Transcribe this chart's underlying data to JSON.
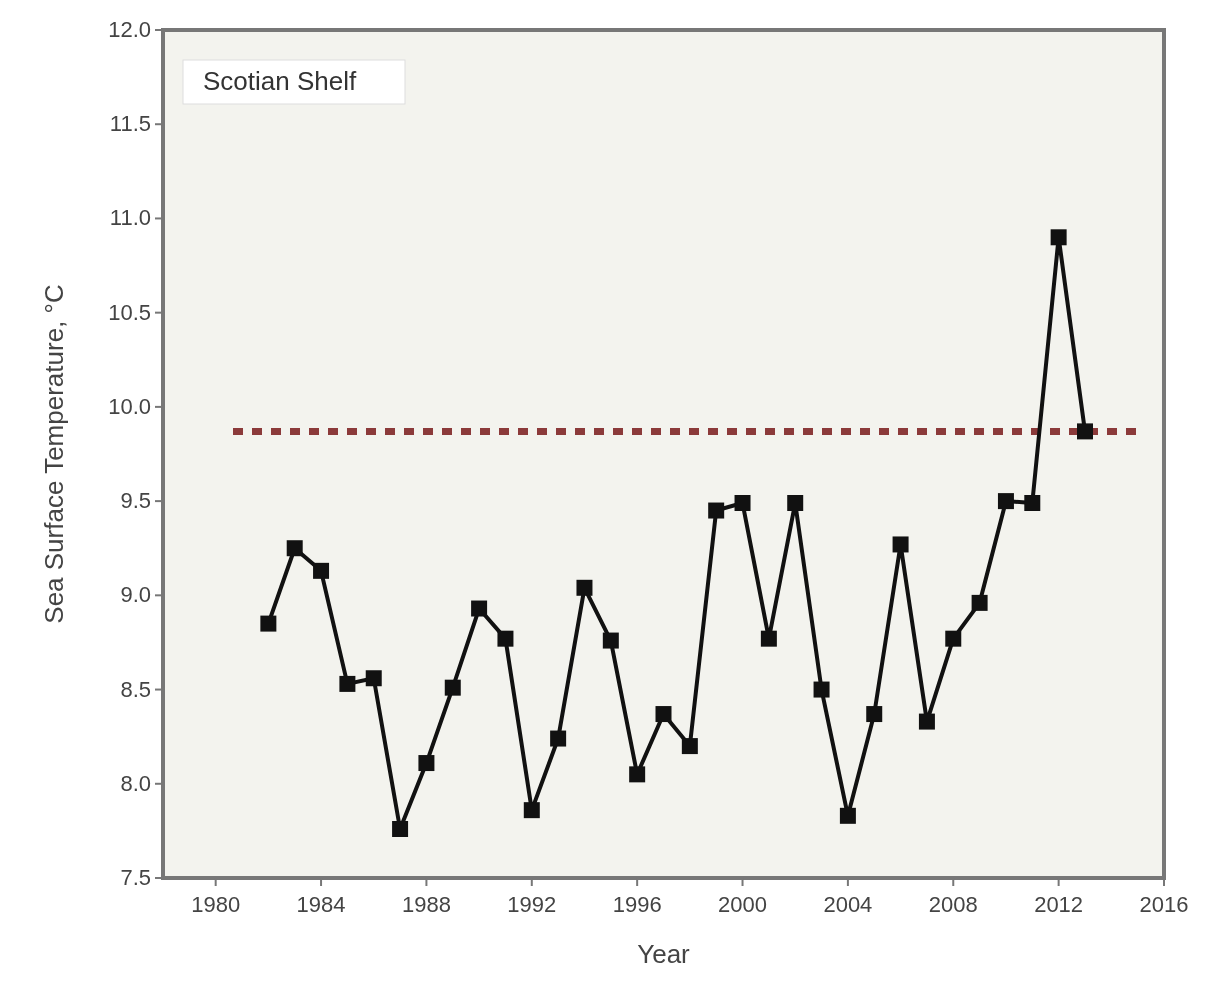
{
  "chart_data": {
    "type": "line",
    "xlabel": "Year",
    "ylabel": "Sea Surface Temperature, °C",
    "annotations": [
      "Scotian Shelf"
    ],
    "x": [
      1982,
      1983,
      1984,
      1985,
      1986,
      1987,
      1988,
      1989,
      1990,
      1991,
      1992,
      1993,
      1994,
      1995,
      1996,
      1997,
      1998,
      1999,
      2000,
      2001,
      2002,
      2003,
      2004,
      2005,
      2006,
      2007,
      2008,
      2009,
      2010,
      2011,
      2012,
      2013
    ],
    "series": [
      {
        "color": "#111111",
        "values": [
          8.85,
          9.25,
          9.13,
          8.53,
          8.56,
          7.76,
          8.11,
          8.51,
          8.93,
          8.77,
          7.86,
          8.24,
          9.04,
          8.76,
          8.05,
          8.37,
          8.2,
          9.45,
          9.49,
          8.77,
          9.49,
          8.5,
          7.83,
          8.37,
          9.27,
          8.33,
          8.77,
          8.96,
          9.5,
          9.49,
          10.9,
          9.87
        ]
      }
    ],
    "xlim": [
      1978,
      2016
    ],
    "xticks": [
      1980,
      1984,
      1988,
      1992,
      1996,
      2000,
      2004,
      2008,
      2012,
      2016
    ],
    "ylim": [
      7.5,
      12
    ],
    "yticks": [
      {
        "value": 7.5,
        "label": "7.5"
      },
      {
        "value": 8,
        "label": "8.0"
      },
      {
        "value": 8.5,
        "label": "8.5"
      },
      {
        "value": 9,
        "label": "9.0"
      },
      {
        "value": 9.5,
        "label": "9.5"
      },
      {
        "value": 10,
        "label": "10.0"
      },
      {
        "value": 10.5,
        "label": "10.5"
      },
      {
        "value": 11,
        "label": "11.0"
      },
      {
        "value": 11.5,
        "label": "11.5"
      },
      {
        "value": 12,
        "label": "12.0"
      }
    ],
    "ref_lines": [
      {
        "axis": "y",
        "value": 9.87,
        "color": "#8b3a3a",
        "line_style": "dashed"
      }
    ],
    "marker": "square",
    "line_style": "solid",
    "grid": false
  }
}
